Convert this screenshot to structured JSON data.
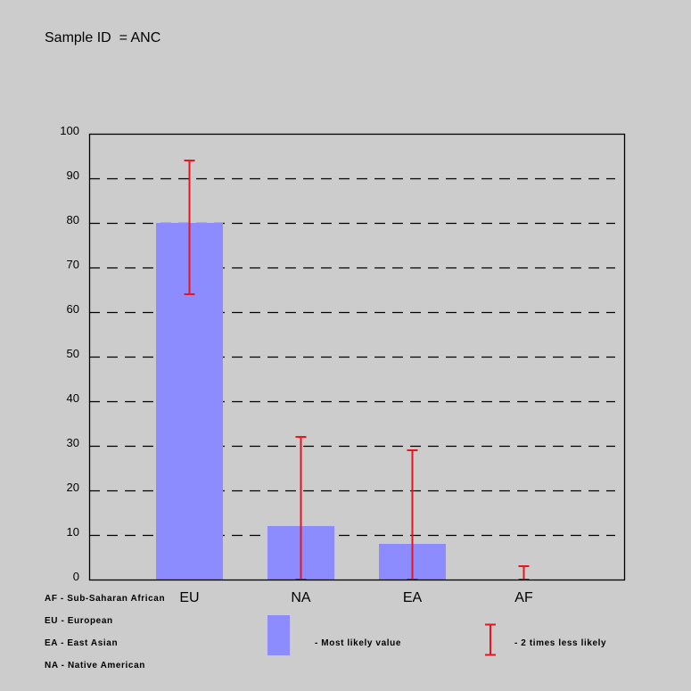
{
  "title": "Sample ID  = ANC",
  "colors": {
    "background": "#cccccc",
    "bar": "#8c8cff",
    "error_bar": "#e8141e",
    "grid": "#000000"
  },
  "chart_data": {
    "type": "bar",
    "title": "Sample ID  = ANC",
    "categories": [
      "EU",
      "NA",
      "EA",
      "AF"
    ],
    "values": [
      80,
      12,
      8,
      0
    ],
    "error_low": [
      64,
      0,
      0,
      0
    ],
    "error_high": [
      94,
      32,
      29,
      3
    ],
    "xlabel": "",
    "ylabel": "",
    "ylim": [
      0,
      100
    ],
    "yticks": [
      0,
      10,
      20,
      30,
      40,
      50,
      60,
      70,
      80,
      90,
      100
    ],
    "grid": "horizontal dashed",
    "series": [
      {
        "name": "Most likely value",
        "values": [
          80,
          12,
          8,
          0
        ]
      }
    ],
    "error_bar_label": "2 times less likely"
  },
  "abbreviations": [
    "AF - Sub-Saharan African",
    "EU - European",
    "EA - East Asian",
    "NA - Native American"
  ],
  "legend": {
    "bar_label": "- Most likely value",
    "error_label": "- 2 times less likely"
  }
}
